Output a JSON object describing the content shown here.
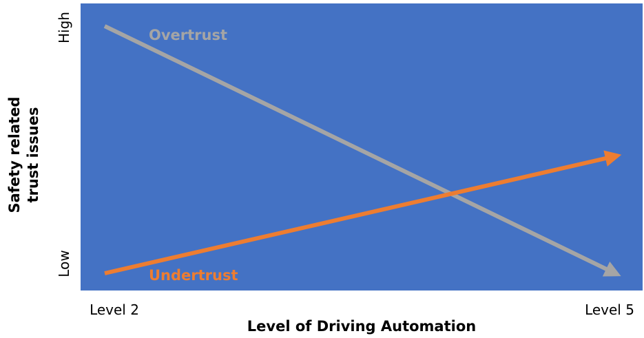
{
  "chart_data": {
    "type": "line",
    "title": "",
    "xlabel": "Level of Driving Automation",
    "ylabel_line1": "Safety related",
    "ylabel_line2": "trust issues",
    "x_categories": [
      "Level 2",
      "Level 5"
    ],
    "y_ticks": [
      "Low",
      "High"
    ],
    "background_color": "#4472C4",
    "series": [
      {
        "name": "Overtrust",
        "color": "#A5A5A5",
        "start": {
          "x": "Level 2",
          "y": 0.95
        },
        "end": {
          "x": "Level 5",
          "y": 0.0
        },
        "arrow": true
      },
      {
        "name": "Undertrust",
        "color": "#ED7D31",
        "start": {
          "x": "Level 2",
          "y": 0.0
        },
        "end": {
          "x": "Level 5",
          "y": 0.45
        },
        "arrow": true
      }
    ],
    "grid": false,
    "legend": "none"
  }
}
